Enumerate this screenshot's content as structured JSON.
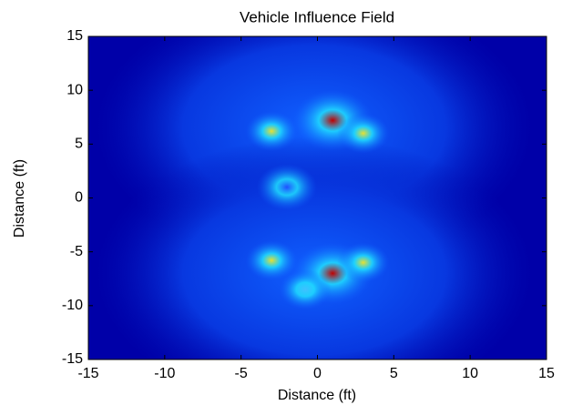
{
  "chart_data": {
    "type": "heatmap",
    "title": "Vehicle Influence Field",
    "x_label": "Distance (ft)",
    "y_label": "Distance (ft)",
    "xlim": [
      -15,
      15
    ],
    "ylim": [
      -15,
      15
    ],
    "xticks": [
      -15,
      -10,
      -5,
      0,
      5,
      10,
      15
    ],
    "yticks": [
      -15,
      -10,
      -5,
      0,
      5,
      10,
      15
    ],
    "peaks": {
      "x": [
        1,
        -3,
        3,
        1,
        -3,
        3,
        -2,
        -0.8
      ],
      "y": [
        7.2,
        6.2,
        6,
        -7,
        -5.8,
        -6,
        1,
        -8.5
      ],
      "colors": [
        "#c00000",
        "#e8e030",
        "#e8e030",
        "#c00000",
        "#e8e030",
        "#e8e030",
        "#2050ff",
        "#40c0ff"
      ]
    }
  }
}
